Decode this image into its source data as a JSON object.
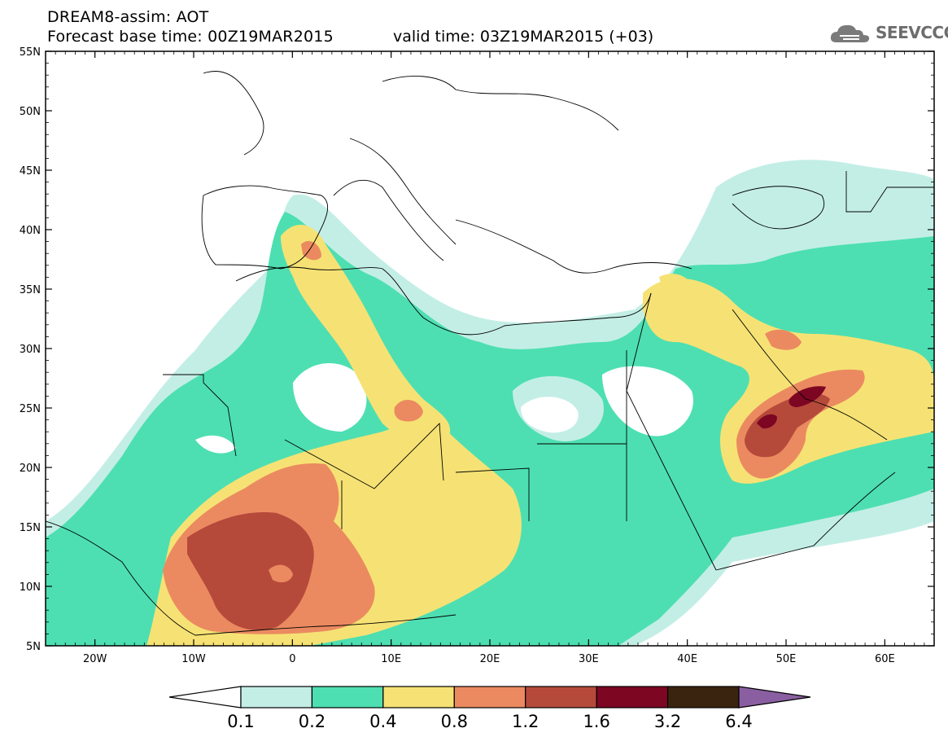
{
  "title": {
    "line1": "DREAM8-assim: AOT",
    "line2": "Forecast base time: 00Z19MAR2015",
    "valid": "valid time: 03Z19MAR2015 (+03)"
  },
  "logo": {
    "text": "SEEVCCC",
    "icon": "cloud-icon"
  },
  "map": {
    "lon_range": [
      -25,
      65
    ],
    "lat_range": [
      5,
      55
    ],
    "lat_labels": [
      "55N",
      "50N",
      "45N",
      "40N",
      "35N",
      "30N",
      "25N",
      "20N",
      "15N",
      "10N",
      "5N"
    ],
    "lon_labels": [
      "20W",
      "10W",
      "0",
      "10E",
      "20E",
      "30E",
      "40E",
      "50E",
      "60E"
    ],
    "background_color": "#ffffff",
    "border_color": "#000000"
  },
  "colorbar": {
    "thresholds": [
      "0.1",
      "0.2",
      "0.4",
      "0.8",
      "1.2",
      "1.6",
      "3.2",
      "6.4"
    ],
    "colors": [
      "#ffffff",
      "#c3eee6",
      "#4ddfb1",
      "#f6e274",
      "#eb8a60",
      "#b54a3b",
      "#7d0623",
      "#3a2410",
      "#8a5fa1"
    ]
  }
}
